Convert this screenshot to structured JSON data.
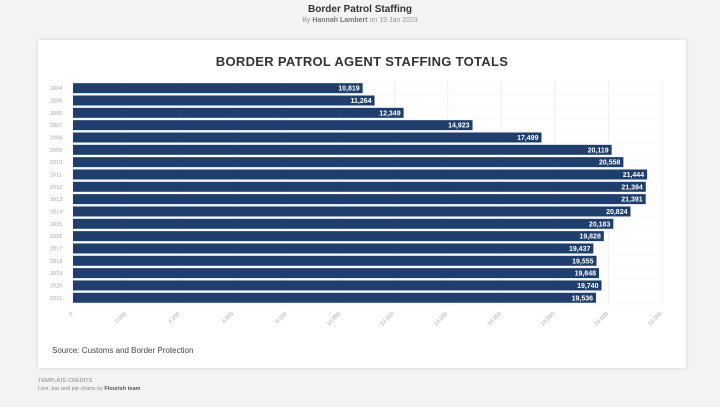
{
  "page": {
    "title": "Border Patrol Staffing",
    "byline_prefix": "By",
    "author": "Hannah Lambert",
    "byline_date": "on 19 Jan 2023"
  },
  "chart_data": {
    "type": "bar",
    "orientation": "horizontal",
    "title": "BORDER PATROL AGENT STAFFING TOTALS",
    "categories": [
      "2004",
      "2005",
      "2006",
      "2007",
      "2008",
      "2009",
      "2010",
      "2011",
      "2012",
      "2013",
      "2014",
      "2015",
      "2016",
      "2017",
      "2018",
      "2019",
      "2020",
      "2021"
    ],
    "values": [
      10819,
      11264,
      12349,
      14923,
      17499,
      20119,
      20558,
      21444,
      21394,
      21391,
      20824,
      20183,
      19828,
      19437,
      19555,
      19648,
      19740,
      19536
    ],
    "value_labels": [
      "10,819",
      "11,264",
      "12,349",
      "14,923",
      "17,499",
      "20,119",
      "20,558",
      "21,444",
      "21,394",
      "21,391",
      "20,824",
      "20,183",
      "19,828",
      "19,437",
      "19,555",
      "19,648",
      "19,740",
      "19,536"
    ],
    "xlim": [
      0,
      22000
    ],
    "xticks": [
      0,
      2000,
      4000,
      6000,
      8000,
      10000,
      12000,
      14000,
      16000,
      18000,
      20000,
      22000
    ],
    "xtick_labels": [
      "0",
      "2,000",
      "4,000",
      "6,000",
      "8,000",
      "10,000",
      "12,000",
      "14,000",
      "16,000",
      "18,000",
      "20,000",
      "22,000"
    ],
    "bar_color": "#1e3f6e",
    "grid": true
  },
  "source": "Source: Customs and Border Protection",
  "credits": {
    "heading": "TEMPLATE CREDITS",
    "text": "Line, bar and pie charts by",
    "team": "Flourish team"
  }
}
